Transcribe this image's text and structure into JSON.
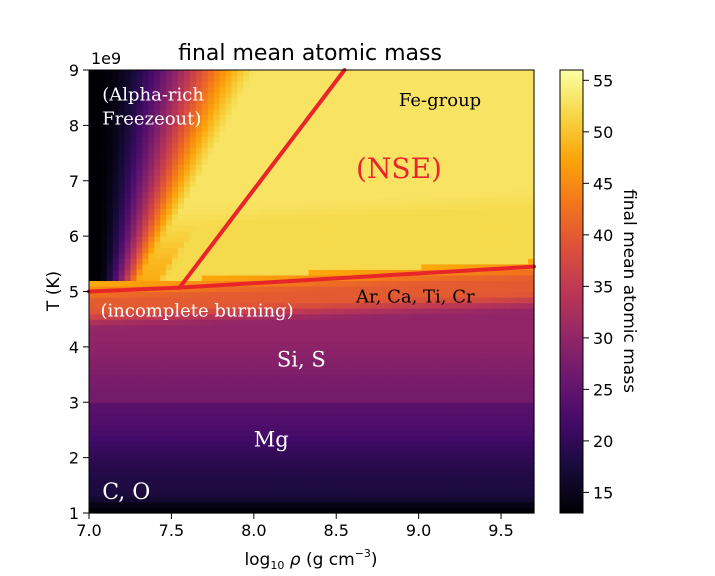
{
  "chart_data": {
    "type": "heatmap",
    "title": "final mean atomic mass",
    "xlabel": "log₁₀ ρ (g cm⁻³)",
    "xlabel_parts": {
      "prefix": "log",
      "sub": "10",
      "rho": "ρ",
      "unit": "(g cm",
      "sup": "−3",
      "close": ")"
    },
    "ylabel": "T (K)",
    "y_offset_label": "1e9",
    "xlim": [
      7.0,
      9.7
    ],
    "ylim": [
      1,
      9
    ],
    "xticks": [
      7.0,
      7.5,
      8.0,
      8.5,
      9.0,
      9.5
    ],
    "xtick_labels": [
      "7.0",
      "7.5",
      "8.0",
      "8.5",
      "9.0",
      "9.5"
    ],
    "yticks": [
      1,
      2,
      3,
      4,
      5,
      6,
      7,
      8,
      9
    ],
    "ytick_labels": [
      "1",
      "2",
      "3",
      "4",
      "5",
      "6",
      "7",
      "8",
      "9"
    ],
    "colorbar": {
      "label": "final mean atomic mass",
      "range": [
        13,
        56
      ],
      "ticks": [
        15,
        20,
        25,
        30,
        35,
        40,
        45,
        50,
        55
      ],
      "tick_labels": [
        "15",
        "20",
        "25",
        "30",
        "35",
        "40",
        "45",
        "50",
        "55"
      ],
      "colormap": "inferno"
    },
    "grid": false,
    "region_lines": [
      {
        "points": [
          [
            7.0,
            5.0
          ],
          [
            7.55,
            5.07
          ],
          [
            9.7,
            5.45
          ]
        ],
        "color": "#e8262a"
      },
      {
        "points": [
          [
            7.55,
            5.07
          ],
          [
            8.55,
            9.0
          ]
        ],
        "color": "#e8262a"
      }
    ],
    "annotations": [
      {
        "lines": [
          "(Alpha-rich",
          "Freezeout)"
        ],
        "x": 7.08,
        "y": 8.45,
        "color": "#ffffff",
        "size": 18
      },
      {
        "lines": [
          "Fe-group"
        ],
        "x": 8.88,
        "y": 8.35,
        "color": "#000000",
        "size": 18
      },
      {
        "lines": [
          "(NSE)"
        ],
        "x": 8.62,
        "y": 7.05,
        "color": "#e8262a",
        "size": 28
      },
      {
        "lines": [
          "Ar, Ca, Ti, Cr"
        ],
        "x": 8.62,
        "y": 4.8,
        "color": "#000000",
        "size": 18
      },
      {
        "lines": [
          "(incomplete burning)"
        ],
        "x": 7.07,
        "y": 4.55,
        "color": "#ffffff",
        "size": 18
      },
      {
        "lines": [
          "Si, S"
        ],
        "x": 8.14,
        "y": 3.65,
        "color": "#ffffff",
        "size": 21
      },
      {
        "lines": [
          "Mg"
        ],
        "x": 8.0,
        "y": 2.2,
        "color": "#ffffff",
        "size": 21
      },
      {
        "lines": [
          "C, O"
        ],
        "x": 7.08,
        "y": 1.25,
        "color": "#ffffff",
        "size": 22
      }
    ]
  }
}
